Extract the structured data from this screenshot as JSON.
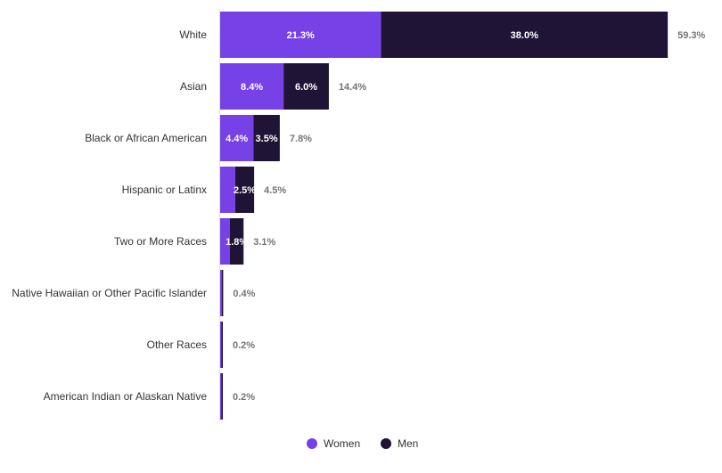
{
  "chart_data": {
    "type": "bar",
    "orientation": "horizontal",
    "stacked": true,
    "categories": [
      "White",
      "Asian",
      "Black or African American",
      "Hispanic or Latinx",
      "Two or More Races",
      "Native Hawaiian or Other Pacific Islander",
      "Other Races",
      "American Indian or Alaskan Native"
    ],
    "series": [
      {
        "name": "Women",
        "color": "#7641e6",
        "values": [
          21.3,
          8.4,
          4.4,
          2.0,
          1.3,
          0.2,
          0.1,
          0.1
        ],
        "labels": [
          "21.3%",
          "8.4%",
          "4.4%",
          "",
          "",
          "",
          "",
          ""
        ]
      },
      {
        "name": "Men",
        "color": "#1f1435",
        "values": [
          38.0,
          6.0,
          3.5,
          2.5,
          1.8,
          0.2,
          0.1,
          0.1
        ],
        "labels": [
          "38.0%",
          "6.0%",
          "3.5%",
          "2.5%",
          "1.8%",
          "",
          "",
          ""
        ]
      }
    ],
    "totals": [
      "59.3%",
      "14.4%",
      "7.8%",
      "4.5%",
      "3.1%",
      "0.4%",
      "0.2%",
      "0.2%"
    ],
    "xlim": [
      0,
      60
    ],
    "grid": false,
    "legend_position": "bottom-center"
  },
  "legend": {
    "items": [
      {
        "label": "Women",
        "color": "#7641e6"
      },
      {
        "label": "Men",
        "color": "#1f1435"
      }
    ]
  }
}
